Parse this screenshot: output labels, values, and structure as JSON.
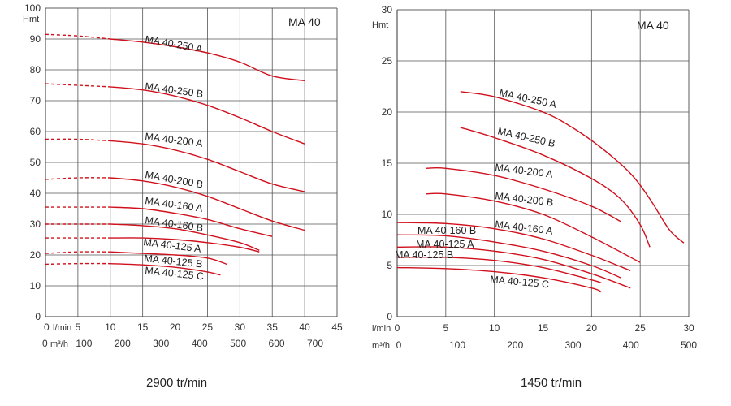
{
  "chart_data": [
    {
      "type": "line",
      "title": "MA 40",
      "caption": "2900 tr/min",
      "ylabel": "Hmt",
      "xlabel_primary": "l/min",
      "xlabel_secondary": "m³/h",
      "ylim": [
        0,
        100
      ],
      "xlim": [
        0,
        45
      ],
      "grid": true,
      "y_ticks": [
        "0",
        "10",
        "20",
        "30",
        "40",
        "50",
        "60",
        "70",
        "80",
        "90",
        "100"
      ],
      "x_ticks_primary": [
        "0",
        "5",
        "10",
        "15",
        "20",
        "25",
        "30",
        "35",
        "40",
        "45"
      ],
      "x_ticks_secondary": [
        "0",
        "100",
        "200",
        "300",
        "400",
        "500",
        "600",
        "700"
      ],
      "series": [
        {
          "name": "MA 40-250 A",
          "dashed_until": 10,
          "points": [
            [
              0,
              91.5
            ],
            [
              5,
              91
            ],
            [
              10,
              90
            ],
            [
              15,
              89
            ],
            [
              20,
              87.5
            ],
            [
              25,
              85.5
            ],
            [
              30,
              82.5
            ],
            [
              35,
              78
            ],
            [
              40,
              76.5
            ]
          ]
        },
        {
          "name": "MA 40-250 B",
          "dashed_until": 10,
          "points": [
            [
              0,
              75.5
            ],
            [
              5,
              75
            ],
            [
              10,
              74.5
            ],
            [
              15,
              73.5
            ],
            [
              20,
              71.5
            ],
            [
              25,
              68.5
            ],
            [
              30,
              64.5
            ],
            [
              35,
              60
            ],
            [
              40,
              56
            ]
          ]
        },
        {
          "name": "MA 40-200 A",
          "dashed_until": 10,
          "points": [
            [
              0,
              57.5
            ],
            [
              5,
              57.5
            ],
            [
              10,
              57
            ],
            [
              15,
              56
            ],
            [
              20,
              54
            ],
            [
              25,
              51
            ],
            [
              30,
              47
            ],
            [
              35,
              43
            ],
            [
              40,
              40.5
            ]
          ]
        },
        {
          "name": "MA 40-200 B",
          "dashed_until": 10,
          "points": [
            [
              0,
              44.5
            ],
            [
              5,
              45
            ],
            [
              10,
              45
            ],
            [
              15,
              44
            ],
            [
              20,
              42
            ],
            [
              25,
              39
            ],
            [
              30,
              35
            ],
            [
              35,
              31
            ],
            [
              40,
              28
            ]
          ]
        },
        {
          "name": "MA 40-160 A",
          "dashed_until": 10,
          "points": [
            [
              0,
              35.5
            ],
            [
              5,
              35.5
            ],
            [
              10,
              35.5
            ],
            [
              15,
              35
            ],
            [
              20,
              33.5
            ],
            [
              25,
              31.5
            ],
            [
              30,
              28.5
            ],
            [
              35,
              26
            ]
          ]
        },
        {
          "name": "MA 40-160 B",
          "dashed_until": 10,
          "points": [
            [
              0,
              30
            ],
            [
              5,
              30
            ],
            [
              10,
              30
            ],
            [
              15,
              29.5
            ],
            [
              20,
              28.5
            ],
            [
              25,
              26.5
            ],
            [
              30,
              24
            ],
            [
              33,
              21.5
            ]
          ]
        },
        {
          "name": "MA 40-125 A",
          "dashed_until": 10,
          "points": [
            [
              0,
              25.5
            ],
            [
              5,
              25.5
            ],
            [
              10,
              25.5
            ],
            [
              15,
              25.5
            ],
            [
              20,
              25
            ],
            [
              25,
              24
            ],
            [
              30,
              22.5
            ],
            [
              33,
              21
            ]
          ]
        },
        {
          "name": "MA 40-125 B",
          "dashed_until": 10,
          "points": [
            [
              0,
              20.5
            ],
            [
              5,
              21
            ],
            [
              10,
              21
            ],
            [
              15,
              20.5
            ],
            [
              20,
              20
            ],
            [
              25,
              19
            ],
            [
              28,
              17
            ]
          ]
        },
        {
          "name": "MA 40-125 C",
          "dashed_until": 10,
          "points": [
            [
              0,
              17
            ],
            [
              5,
              17.2
            ],
            [
              10,
              17.2
            ],
            [
              15,
              16.8
            ],
            [
              20,
              16
            ],
            [
              25,
              14.5
            ],
            [
              27,
              13.5
            ]
          ]
        }
      ]
    },
    {
      "type": "line",
      "title": "MA 40",
      "caption": "1450 tr/min",
      "ylabel": "Hmt",
      "xlabel_primary": "l/min",
      "xlabel_secondary": "m³/h",
      "ylim": [
        0,
        30
      ],
      "xlim": [
        0,
        30
      ],
      "grid": true,
      "y_ticks": [
        "0",
        "5",
        "10",
        "15",
        "20",
        "25",
        "30"
      ],
      "x_ticks_primary": [
        "0",
        "5",
        "10",
        "15",
        "20",
        "25",
        "30"
      ],
      "x_ticks_secondary": [
        "0",
        "100",
        "200",
        "300",
        "400",
        "500"
      ],
      "series": [
        {
          "name": "MA 40-250 A",
          "points": [
            [
              6.5,
              22
            ],
            [
              10,
              21.5
            ],
            [
              15,
              20
            ],
            [
              18,
              18.5
            ],
            [
              21,
              16.5
            ],
            [
              24,
              14
            ],
            [
              26,
              11.5
            ],
            [
              28,
              8.5
            ],
            [
              29.5,
              7.2
            ]
          ]
        },
        {
          "name": "MA 40-250 B",
          "points": [
            [
              6.5,
              18.5
            ],
            [
              10,
              17.5
            ],
            [
              15,
              15.8
            ],
            [
              20,
              13.5
            ],
            [
              23,
              11.5
            ],
            [
              25,
              9
            ],
            [
              26,
              6.8
            ]
          ]
        },
        {
          "name": "MA 40-200 A",
          "points": [
            [
              3,
              14.5
            ],
            [
              5,
              14.5
            ],
            [
              10,
              13.8
            ],
            [
              15,
              12.5
            ],
            [
              20,
              10.8
            ],
            [
              23,
              9.3
            ]
          ]
        },
        {
          "name": "MA 40-200 B",
          "points": [
            [
              3,
              12
            ],
            [
              5,
              12
            ],
            [
              10,
              11.3
            ],
            [
              15,
              10
            ],
            [
              20,
              7.8
            ],
            [
              25,
              5.3
            ]
          ]
        },
        {
          "name": "MA 40-160 A",
          "points": [
            [
              0,
              9.2
            ],
            [
              5,
              9.1
            ],
            [
              10,
              8.6
            ],
            [
              15,
              7.6
            ],
            [
              20,
              6
            ],
            [
              24,
              4.5
            ]
          ]
        },
        {
          "name": "MA 40-160 B",
          "points": [
            [
              0,
              8
            ],
            [
              5,
              7.9
            ],
            [
              10,
              7.3
            ],
            [
              15,
              6.4
            ],
            [
              20,
              5
            ],
            [
              23,
              3.8
            ]
          ]
        },
        {
          "name": "MA 40-125 A",
          "points": [
            [
              0,
              6.8
            ],
            [
              5,
              6.8
            ],
            [
              10,
              6.4
            ],
            [
              15,
              5.6
            ],
            [
              20,
              4.2
            ],
            [
              24,
              2.8
            ]
          ]
        },
        {
          "name": "MA 40-125 B",
          "points": [
            [
              0,
              5.8
            ],
            [
              5,
              5.8
            ],
            [
              10,
              5.5
            ],
            [
              15,
              4.8
            ],
            [
              20,
              3.6
            ],
            [
              21,
              3.3
            ]
          ]
        },
        {
          "name": "MA 40-125 C",
          "points": [
            [
              0,
              4.8
            ],
            [
              5,
              4.7
            ],
            [
              10,
              4.4
            ],
            [
              15,
              3.8
            ],
            [
              20,
              2.8
            ],
            [
              21,
              2.4
            ]
          ]
        }
      ]
    }
  ]
}
